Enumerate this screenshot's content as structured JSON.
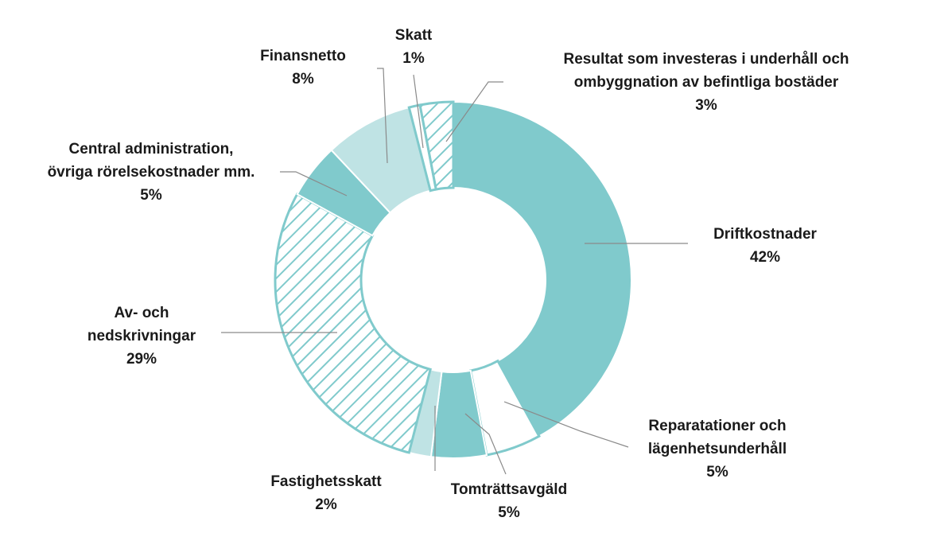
{
  "chart_data": {
    "type": "pie",
    "variant": "donut",
    "slices": [
      {
        "name": "Driftkostnader",
        "value": 42,
        "value_label": "42%",
        "color": "#80cacc",
        "fill": "solid",
        "label_lines": [
          "Driftkostnader"
        ]
      },
      {
        "name": "Reparatationer och lägenhetsunderhåll",
        "value": 5,
        "value_label": "5%",
        "color": "#ffffff",
        "fill": "outline",
        "label_lines": [
          "Reparatationer och",
          "lägenhetsunderhåll"
        ]
      },
      {
        "name": "Tomträttsavgäld",
        "value": 5,
        "value_label": "5%",
        "color": "#80cacc",
        "fill": "solid",
        "label_lines": [
          "Tomträttsavgäld"
        ]
      },
      {
        "name": "Fastighetsskatt",
        "value": 2,
        "value_label": "2%",
        "color": "#bfe3e4",
        "fill": "solid",
        "label_lines": [
          "Fastighetsskatt"
        ]
      },
      {
        "name": "Av- och nedskrivningar",
        "value": 29,
        "value_label": "29%",
        "color": "#80cacc",
        "fill": "hatch",
        "label_lines": [
          "Av- och",
          "nedskrivningar"
        ]
      },
      {
        "name": "Central administration, övriga rörelsekostnader mm.",
        "value": 5,
        "value_label": "5%",
        "color": "#80cacc",
        "fill": "solid",
        "label_lines": [
          "Central administration,",
          "övriga rörelsekostnader mm."
        ]
      },
      {
        "name": "Finansnetto",
        "value": 8,
        "value_label": "8%",
        "color": "#bfe3e4",
        "fill": "solid",
        "label_lines": [
          "Finansnetto"
        ]
      },
      {
        "name": "Skatt",
        "value": 1,
        "value_label": "1%",
        "color": "#ffffff",
        "fill": "outline",
        "label_lines": [
          "Skatt"
        ]
      },
      {
        "name": "Resultat som investeras i underhåll och ombyggnation av befintliga bostäder",
        "value": 3,
        "value_label": "3%",
        "color": "#80cacc",
        "fill": "hatch",
        "label_lines": [
          "Resultat som investeras i underhåll och",
          "ombyggnation av befintliga bostäder"
        ]
      }
    ],
    "start": "top",
    "direction": "clockwise",
    "accent_color": "#80cacc",
    "title": "",
    "legend": "none"
  }
}
